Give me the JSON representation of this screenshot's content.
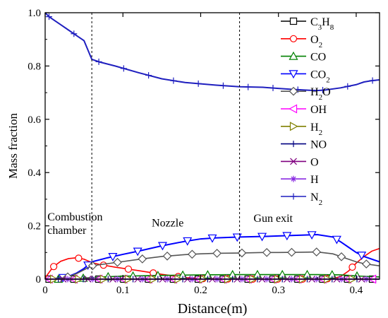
{
  "chart_data": {
    "type": "line",
    "xlabel": "Distance(m)",
    "ylabel": "Mass fraction",
    "xlim": [
      0,
      0.43
    ],
    "ylim": [
      0,
      1.0
    ],
    "xticks": [
      "0",
      "0.1",
      "0.2",
      "0.3",
      "0.4"
    ],
    "xtick_values": [
      0,
      0.1,
      0.2,
      0.3,
      0.4
    ],
    "yticks": [
      "0",
      "0.2",
      "0.4",
      "0.6",
      "0.8",
      "1.0"
    ],
    "ytick_values": [
      0,
      0.2,
      0.4,
      0.6,
      0.8,
      1.0
    ],
    "vlines": [
      0.06,
      0.25
    ],
    "annotations": [
      {
        "text": "Combustion",
        "x": 0.003,
        "y": 0.22
      },
      {
        "text": "chamber",
        "x": 0.003,
        "y": 0.17
      },
      {
        "text": "Nozzle",
        "x": 0.137,
        "y": 0.198
      },
      {
        "text": "Gun exit",
        "x": 0.268,
        "y": 0.215
      }
    ],
    "legend_position": "top-right",
    "series": [
      {
        "name": "C3H8",
        "label_base": "C",
        "label_sub": "3",
        "label_mid": "H",
        "label_sub2": "8",
        "color": "#000000",
        "marker": "square",
        "x": [
          0,
          0.005,
          0.01,
          0.02,
          0.03,
          0.04,
          0.05,
          0.06,
          0.43
        ],
        "y": [
          0,
          0,
          0,
          0,
          0,
          0,
          0,
          0,
          0
        ]
      },
      {
        "name": "O2",
        "label_base": "O",
        "label_sub": "2",
        "color": "#ff0000",
        "marker": "circle",
        "x": [
          0,
          0.005,
          0.01,
          0.02,
          0.03,
          0.04,
          0.05,
          0.06,
          0.07,
          0.09,
          0.12,
          0.15,
          0.18,
          0.2,
          0.25,
          0.3,
          0.35,
          0.37,
          0.38,
          0.39,
          0.4,
          0.41,
          0.42,
          0.43
        ],
        "y": [
          0.005,
          0.025,
          0.045,
          0.067,
          0.077,
          0.08,
          0.075,
          0.062,
          0.055,
          0.045,
          0.032,
          0.018,
          0.006,
          0.002,
          0,
          0,
          0,
          0.002,
          0.01,
          0.03,
          0.06,
          0.085,
          0.105,
          0.115
        ]
      },
      {
        "name": "CO",
        "label_base": "CO",
        "color": "#008000",
        "marker": "triangle-up",
        "x": [
          0,
          0.02,
          0.04,
          0.06,
          0.08,
          0.1,
          0.15,
          0.2,
          0.25,
          0.3,
          0.35,
          0.38,
          0.4,
          0.43
        ],
        "y": [
          0,
          0,
          0.002,
          0.006,
          0.009,
          0.011,
          0.014,
          0.016,
          0.017,
          0.017,
          0.017,
          0.016,
          0.012,
          0.008
        ]
      },
      {
        "name": "CO2",
        "label_base": "CO",
        "label_sub": "2",
        "color": "#0000ff",
        "marker": "triangle-down",
        "x": [
          0,
          0.02,
          0.03,
          0.04,
          0.05,
          0.06,
          0.08,
          0.1,
          0.12,
          0.15,
          0.18,
          0.2,
          0.22,
          0.25,
          0.28,
          0.3,
          0.33,
          0.35,
          0.37,
          0.38,
          0.39,
          0.4,
          0.41,
          0.43
        ],
        "y": [
          0,
          0.004,
          0.01,
          0.022,
          0.04,
          0.065,
          0.08,
          0.093,
          0.105,
          0.125,
          0.142,
          0.151,
          0.155,
          0.158,
          0.16,
          0.162,
          0.165,
          0.167,
          0.158,
          0.14,
          0.12,
          0.1,
          0.085,
          0.065
        ]
      },
      {
        "name": "H2O",
        "label_base": "H",
        "label_sub": "2",
        "label_mid": "O",
        "color": "#555555",
        "marker": "diamond",
        "x": [
          0,
          0.02,
          0.03,
          0.04,
          0.05,
          0.06,
          0.08,
          0.1,
          0.12,
          0.15,
          0.18,
          0.2,
          0.22,
          0.25,
          0.28,
          0.3,
          0.33,
          0.35,
          0.37,
          0.38,
          0.39,
          0.4,
          0.41,
          0.43
        ],
        "y": [
          0,
          0.003,
          0.009,
          0.02,
          0.035,
          0.05,
          0.058,
          0.066,
          0.074,
          0.085,
          0.092,
          0.095,
          0.097,
          0.098,
          0.1,
          0.1,
          0.101,
          0.102,
          0.095,
          0.085,
          0.075,
          0.065,
          0.058,
          0.05
        ]
      },
      {
        "name": "OH",
        "label_base": "OH",
        "color": "#ff00ff",
        "marker": "triangle-left",
        "x": [
          0,
          0.43
        ],
        "y": [
          0,
          0
        ]
      },
      {
        "name": "H2",
        "label_base": "H",
        "label_sub": "2",
        "color": "#808000",
        "marker": "triangle-right",
        "x": [
          0,
          0.43
        ],
        "y": [
          0,
          0
        ]
      },
      {
        "name": "NO",
        "label_base": "NO",
        "color": "#000080",
        "marker": "plus",
        "x": [
          0,
          0.43
        ],
        "y": [
          0,
          0
        ]
      },
      {
        "name": "O",
        "label_base": "O",
        "color": "#800080",
        "marker": "x",
        "x": [
          0,
          0.43
        ],
        "y": [
          0,
          0
        ]
      },
      {
        "name": "H",
        "label_base": "H",
        "color": "#8a2be2",
        "marker": "star",
        "x": [
          0,
          0.43
        ],
        "y": [
          0,
          0
        ]
      },
      {
        "name": "N2",
        "label_base": "N",
        "label_sub": "2",
        "color": "#1f1fbf",
        "marker": "plus",
        "x": [
          0,
          0.005,
          0.01,
          0.02,
          0.03,
          0.04,
          0.05,
          0.055,
          0.06,
          0.07,
          0.09,
          0.12,
          0.15,
          0.18,
          0.2,
          0.22,
          0.25,
          0.28,
          0.3,
          0.32,
          0.34,
          0.35,
          0.36,
          0.38,
          0.4,
          0.41,
          0.42,
          0.43
        ],
        "y": [
          1.0,
          0.985,
          0.975,
          0.955,
          0.935,
          0.915,
          0.895,
          0.86,
          0.825,
          0.815,
          0.8,
          0.775,
          0.752,
          0.738,
          0.733,
          0.728,
          0.722,
          0.72,
          0.716,
          0.712,
          0.709,
          0.708,
          0.71,
          0.718,
          0.73,
          0.74,
          0.745,
          0.748
        ]
      }
    ]
  }
}
